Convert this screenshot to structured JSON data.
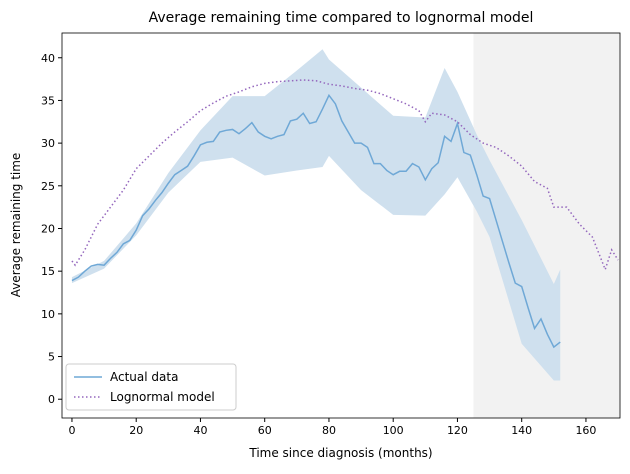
{
  "chart_data": {
    "type": "line",
    "title": "Average remaining time compared to lognormal model",
    "x_label": "Time since diagnosis (months)",
    "y_label": "Average remaining time",
    "xlim": [
      -3.1,
      170.6
    ],
    "ylim": [
      -2.2,
      42.9
    ],
    "xticks": [
      0,
      20,
      40,
      60,
      80,
      100,
      120,
      140,
      160
    ],
    "yticks": [
      0,
      5,
      10,
      15,
      20,
      25,
      30,
      35,
      40
    ],
    "shaded_from": 125,
    "shaded_color": "#f2f2f2",
    "legend": "lower left",
    "band": {
      "color": "#cfe0ee",
      "x": [
        0,
        10,
        20,
        30,
        40,
        50,
        60,
        70,
        78,
        80,
        90,
        100,
        110,
        116,
        120,
        126,
        130,
        140,
        150,
        152
      ],
      "lower": [
        13.6,
        15.3,
        19.2,
        24.2,
        27.8,
        28.3,
        26.2,
        26.8,
        27.2,
        28.5,
        24.5,
        21.6,
        21.5,
        24,
        26,
        22,
        19,
        6.5,
        2.2,
        2.2
      ],
      "upper": [
        14.3,
        16.2,
        20.6,
        26.5,
        31.5,
        35.5,
        35.5,
        38.5,
        41,
        39.8,
        36.5,
        33.2,
        33,
        38.8,
        36,
        31,
        28,
        21,
        13.5,
        15.2
      ]
    },
    "series": [
      {
        "name": "Actual data",
        "color": "#6fa8d6",
        "style": "solid",
        "x": [
          0,
          2,
          4,
          6,
          8,
          10,
          12,
          14,
          16,
          18,
          20,
          22,
          24,
          26,
          28,
          30,
          32,
          34,
          36,
          38,
          40,
          42,
          44,
          46,
          48,
          50,
          52,
          54,
          56,
          58,
          60,
          62,
          64,
          66,
          68,
          70,
          72,
          74,
          76,
          78,
          80,
          82,
          84,
          86,
          88,
          90,
          92,
          94,
          96,
          98,
          100,
          102,
          104,
          106,
          108,
          110,
          112,
          114,
          116,
          118,
          120,
          122,
          124,
          126,
          128,
          130,
          132,
          134,
          136,
          138,
          140,
          142,
          144,
          146,
          148,
          150,
          152
        ],
        "values": [
          13.9,
          14.3,
          15,
          15.6,
          15.8,
          15.7,
          16.5,
          17.2,
          18.2,
          18.6,
          19.8,
          21.5,
          22.3,
          23.3,
          24.2,
          25.3,
          26.3,
          26.8,
          27.3,
          28.5,
          29.8,
          30.1,
          30.2,
          31.3,
          31.5,
          31.6,
          31.1,
          31.7,
          32.4,
          31.3,
          30.8,
          30.5,
          30.8,
          31,
          32.6,
          32.8,
          33.5,
          32.3,
          32.5,
          34,
          35.6,
          34.6,
          32.6,
          31.3,
          30,
          30,
          29.5,
          27.6,
          27.6,
          26.8,
          26.3,
          26.7,
          26.7,
          27.6,
          27.2,
          25.7,
          27,
          27.7,
          30.8,
          30.2,
          32.3,
          28.9,
          28.6,
          26.3,
          23.8,
          23.5,
          21,
          18.5,
          16,
          13.6,
          13.2,
          10.7,
          8.3,
          9.4,
          7.6,
          6.1,
          6.7
        ]
      },
      {
        "name": "Lognormal model",
        "color": "#9467bd",
        "style": "dotted",
        "x": [
          0,
          1,
          4,
          8,
          12,
          16,
          20,
          24,
          28,
          32,
          36,
          40,
          44,
          48,
          52,
          56,
          60,
          64,
          68,
          72,
          76,
          80,
          84,
          88,
          92,
          96,
          100,
          104,
          108,
          110,
          112,
          116,
          120,
          124,
          128,
          132,
          136,
          140,
          144,
          148,
          150,
          154,
          158,
          162,
          166,
          168,
          170
        ],
        "values": [
          16.2,
          15.7,
          17.5,
          20.5,
          22.5,
          24.5,
          27,
          28.5,
          30,
          31.3,
          32.5,
          33.8,
          34.7,
          35.5,
          36,
          36.6,
          37,
          37.2,
          37.3,
          37.4,
          37.3,
          36.9,
          36.7,
          36.4,
          36.2,
          35.8,
          35.2,
          34.6,
          33.8,
          32.5,
          33.5,
          33.3,
          32.5,
          31,
          30,
          29.5,
          28.5,
          27.3,
          25.5,
          24.7,
          22.5,
          22.5,
          20.5,
          19,
          15.2,
          17.5,
          16.3
        ]
      }
    ]
  }
}
